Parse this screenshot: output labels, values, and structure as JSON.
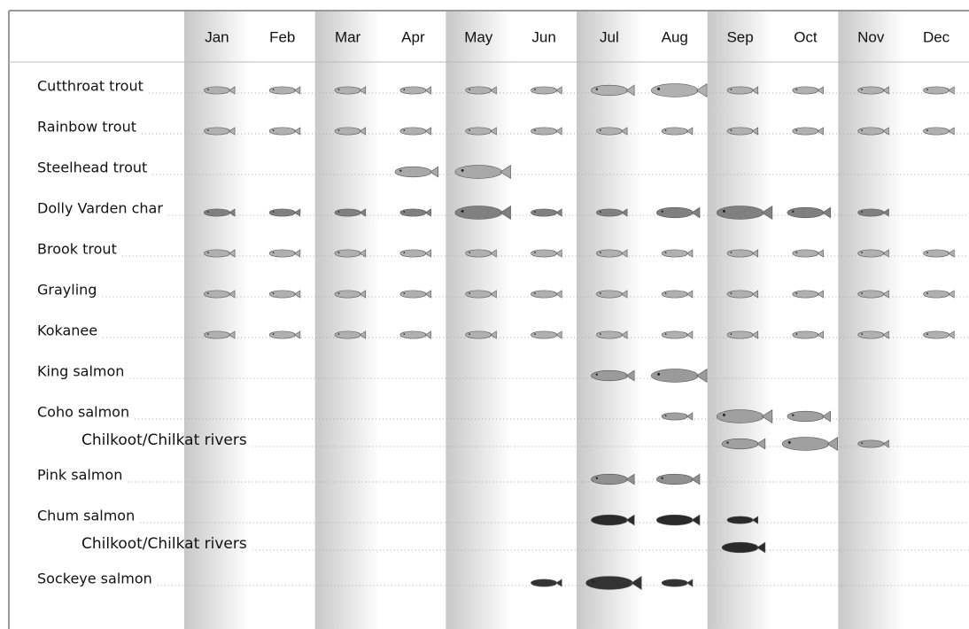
{
  "chart_data": {
    "type": "fish-timing",
    "categories": [
      "Jan",
      "Feb",
      "Mar",
      "Apr",
      "May",
      "Jun",
      "Jul",
      "Aug",
      "Sep",
      "Oct",
      "Nov",
      "Dec"
    ],
    "series": [
      {
        "name": "Cutthroat trout",
        "color": "#b0b0b0",
        "values": [
          1,
          1,
          1,
          1,
          1,
          1,
          2,
          3,
          1,
          1,
          1,
          1
        ]
      },
      {
        "name": "Rainbow trout",
        "color": "#b0b0b0",
        "values": [
          1,
          1,
          1,
          1,
          1,
          1,
          1,
          1,
          1,
          1,
          1,
          1
        ]
      },
      {
        "name": "Steelhead trout",
        "color": "#a8a8a8",
        "values": [
          0,
          0,
          0,
          2,
          3,
          0,
          0,
          0,
          0,
          0,
          0,
          0
        ]
      },
      {
        "name": "Dolly Varden char",
        "color": "#808080",
        "values": [
          1,
          1,
          1,
          1,
          3,
          1,
          1,
          2,
          3,
          2,
          1,
          0
        ]
      },
      {
        "name": "Brook trout",
        "color": "#b0b0b0",
        "values": [
          1,
          1,
          1,
          1,
          1,
          1,
          1,
          1,
          1,
          1,
          1,
          1
        ]
      },
      {
        "name": "Grayling",
        "color": "#b0b0b0",
        "values": [
          1,
          1,
          1,
          1,
          1,
          1,
          1,
          1,
          1,
          1,
          1,
          1
        ]
      },
      {
        "name": "Kokanee",
        "color": "#b0b0b0",
        "values": [
          1,
          1,
          1,
          1,
          1,
          1,
          1,
          1,
          1,
          1,
          1,
          1
        ]
      },
      {
        "name": "King salmon",
        "color": "#9a9a9a",
        "values": [
          0,
          0,
          0,
          0,
          0,
          0,
          2,
          3,
          0,
          0,
          0,
          0
        ]
      },
      {
        "name": "Coho salmon",
        "color": "#a0a0a0",
        "values": [
          0,
          0,
          0,
          0,
          0,
          0,
          0,
          1,
          3,
          2,
          0,
          0
        ],
        "subrow": {
          "name": "Chilkoot/Chilkat rivers",
          "values": [
            0,
            0,
            0,
            0,
            0,
            0,
            0,
            0,
            2,
            3,
            1,
            0
          ]
        }
      },
      {
        "name": "Pink salmon",
        "color": "#909090",
        "values": [
          0,
          0,
          0,
          0,
          0,
          0,
          2,
          2,
          0,
          0,
          0,
          0
        ]
      },
      {
        "name": "Chum salmon",
        "color": "#2a2a2a",
        "values": [
          0,
          0,
          0,
          0,
          0,
          0,
          2,
          2,
          1,
          0,
          0,
          0
        ],
        "subrow": {
          "name": "Chilkoot/Chilkat rivers",
          "values": [
            0,
            0,
            0,
            0,
            0,
            0,
            0,
            0,
            2,
            0,
            0,
            0
          ]
        }
      },
      {
        "name": "Sockeye salmon",
        "color": "#333333",
        "values": [
          0,
          0,
          0,
          0,
          0,
          1,
          3,
          1,
          0,
          0,
          0,
          0
        ]
      }
    ]
  }
}
